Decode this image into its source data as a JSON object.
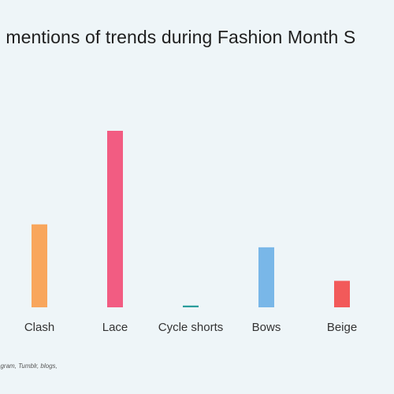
{
  "title": "e mentions of trends during Fashion Month S",
  "source": "agram, Tumblr, blogs,",
  "chart_data": {
    "type": "bar",
    "title": "e mentions of trends during Fashion Month S",
    "categories": [
      "Clash",
      "Lace",
      "Cycle shorts",
      "Bows",
      "Beige"
    ],
    "values": [
      47,
      100,
      1,
      34,
      15
    ],
    "colors": [
      "#f8a65c",
      "#f25c82",
      "#2a9d9c",
      "#79b7e8",
      "#f25a5a"
    ],
    "xlabel": "",
    "ylabel": "",
    "ylim": [
      0,
      100
    ],
    "grid": false,
    "legend": "none"
  }
}
